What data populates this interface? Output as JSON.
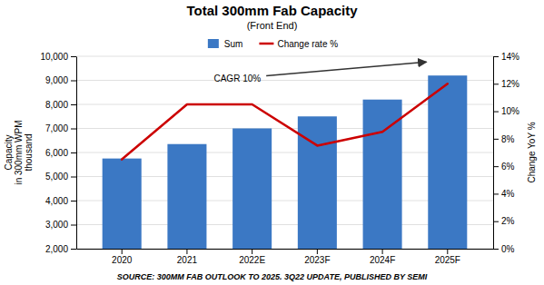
{
  "chart_data": {
    "type": "bar",
    "title": "Total 300mm Fab Capacity",
    "subtitle": "(Front End)",
    "ylabel": "Capacity\nin 300mm WPM\nthousand",
    "y2label": "Change YoY %",
    "source": "SOURCE: 300MM FAB OUTLOOK TO 2025. 3Q22 UPDATE, PUBLISHED BY SEMI",
    "annotations": [
      "CAGR 10%"
    ],
    "categories": [
      "2020",
      "2021",
      "2022E",
      "2023F",
      "2024F",
      "2025F"
    ],
    "series": [
      {
        "name": "Sum",
        "type": "bar",
        "color": "#3b78c4",
        "values": [
          5750,
          6350,
          7000,
          7500,
          8200,
          9200
        ]
      },
      {
        "name": "Change rate %",
        "type": "line",
        "color": "#cc0000",
        "axis": "y2",
        "values": [
          6.5,
          10.5,
          10.5,
          7.5,
          8.5,
          12.0
        ]
      }
    ],
    "ylim": [
      2000,
      10000
    ],
    "yticks": [
      {
        "value": 2000,
        "label": "2,000"
      },
      {
        "value": 3000,
        "label": "3,000"
      },
      {
        "value": 4000,
        "label": "4,000"
      },
      {
        "value": 5000,
        "label": "5,000"
      },
      {
        "value": 6000,
        "label": "6,000"
      },
      {
        "value": 7000,
        "label": "7,000"
      },
      {
        "value": 8000,
        "label": "8,000"
      },
      {
        "value": 9000,
        "label": "9,000"
      },
      {
        "value": 10000,
        "label": "10,000"
      }
    ],
    "y2lim": [
      0,
      14
    ],
    "y2ticks": [
      {
        "value": 0,
        "label": "0%"
      },
      {
        "value": 2,
        "label": "2%"
      },
      {
        "value": 4,
        "label": "4%"
      },
      {
        "value": 6,
        "label": "6%"
      },
      {
        "value": 8,
        "label": "8%"
      },
      {
        "value": 10,
        "label": "10%"
      },
      {
        "value": 12,
        "label": "12%"
      },
      {
        "value": 14,
        "label": "14%"
      }
    ],
    "grid": true,
    "legend": "top"
  }
}
